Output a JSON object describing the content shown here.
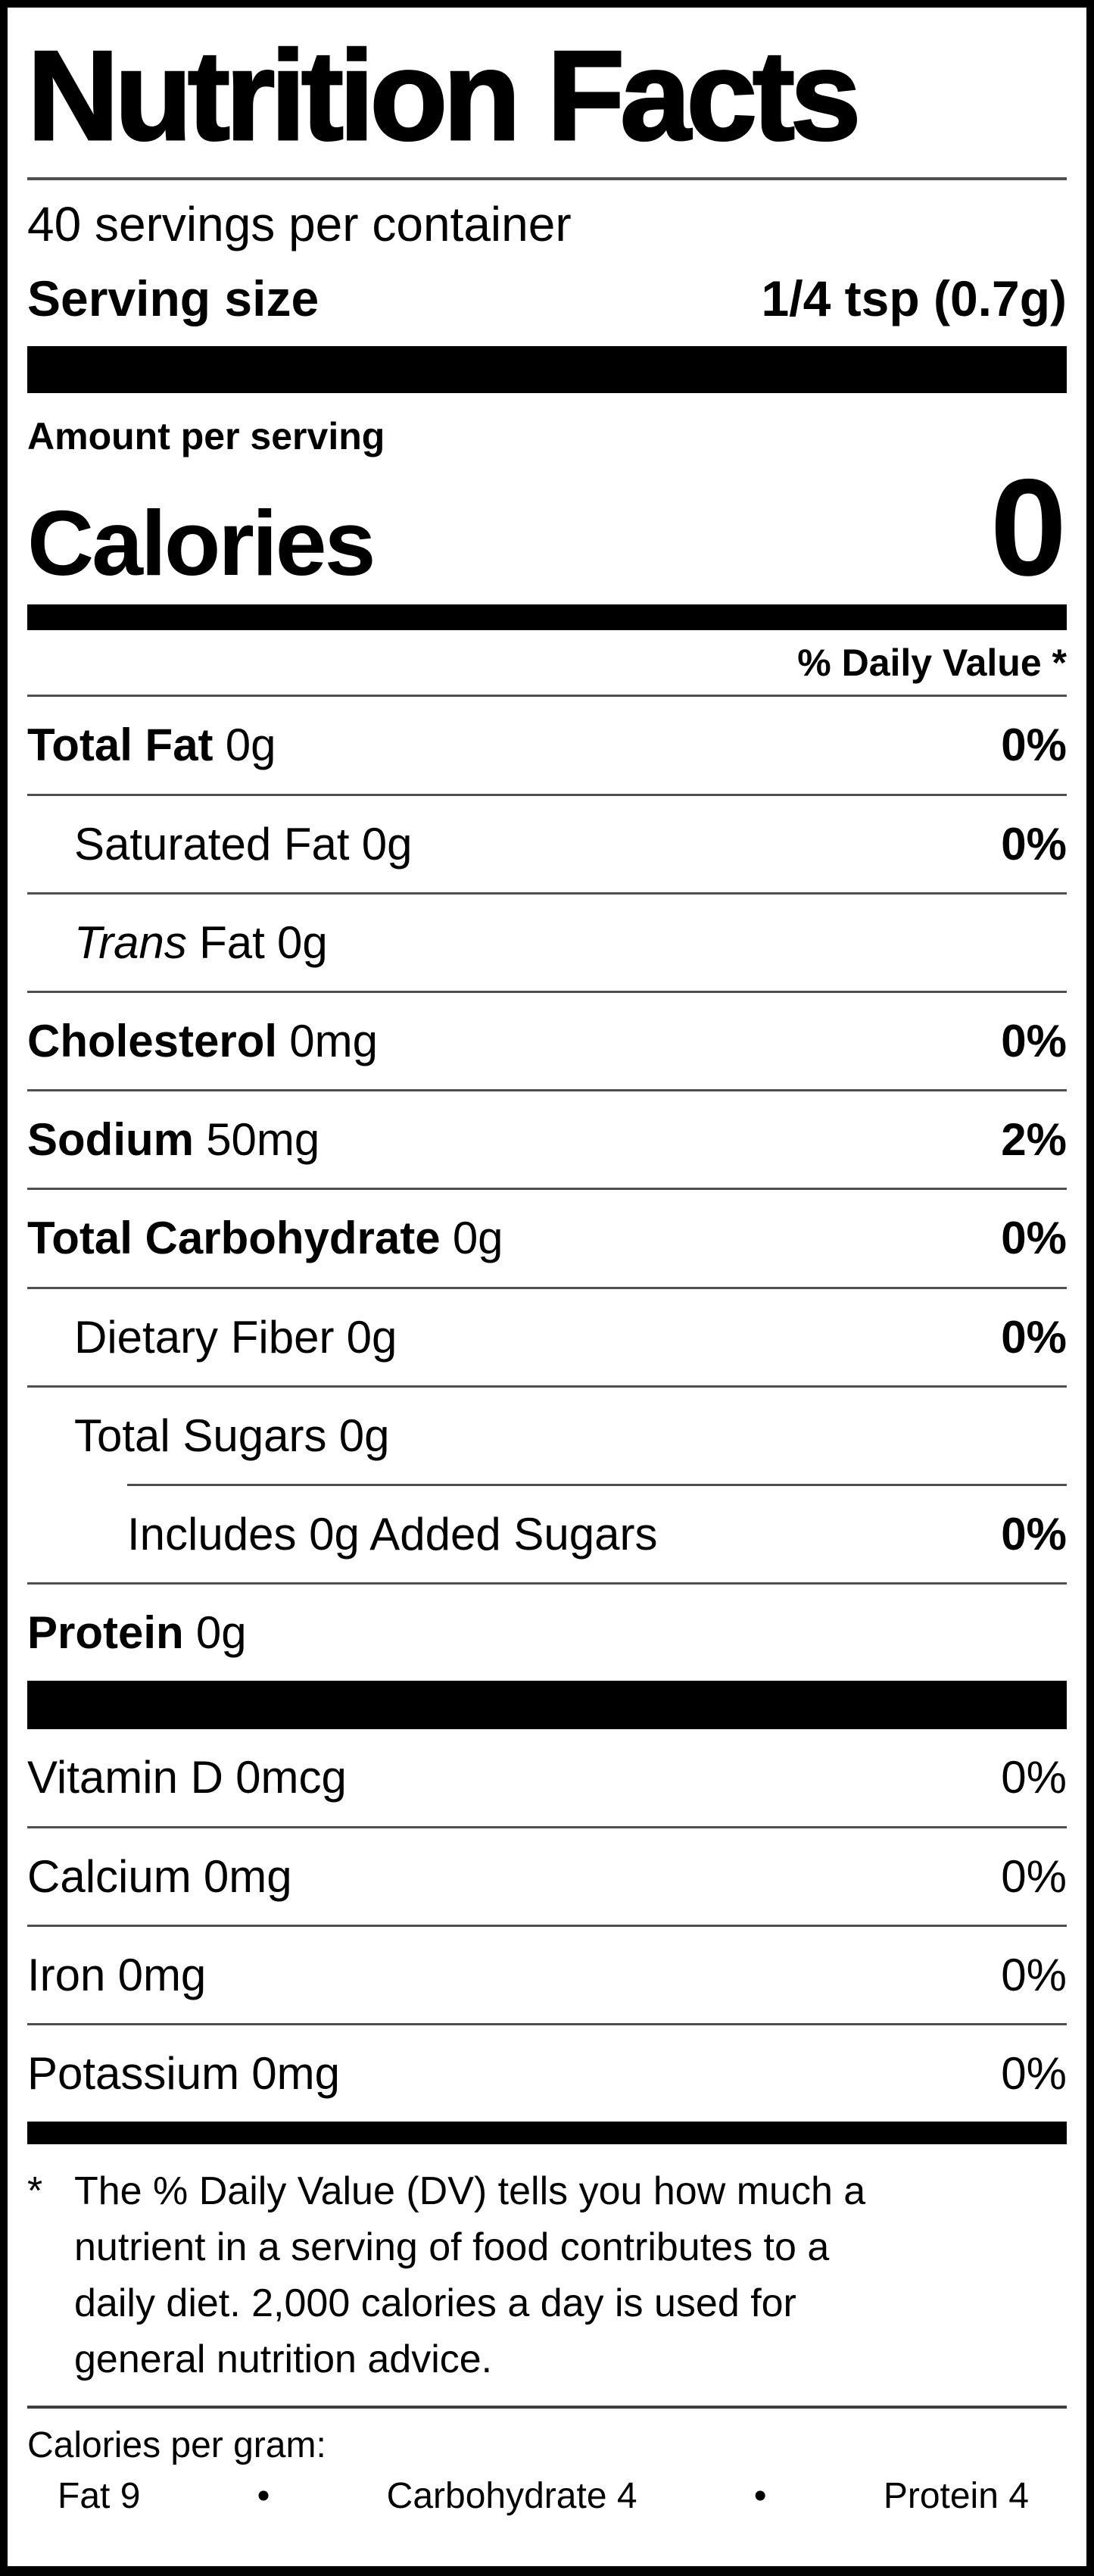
{
  "nutrition_label": {
    "title": "Nutrition Facts",
    "servings_per_container": "40 servings per container",
    "serving_size": {
      "label": "Serving size",
      "value": "1/4 tsp (0.7g)"
    },
    "amount_per_serving": "Amount per serving",
    "calories": {
      "label": "Calories",
      "value": "0"
    },
    "daily_value_header": "% Daily Value *",
    "rows": [
      {
        "name": "Total Fat",
        "amount": "0g",
        "dv": "0%"
      },
      {
        "name": "Saturated Fat",
        "amount": "0g",
        "dv": "0%"
      },
      {
        "italic": "Trans",
        "name": "Fat",
        "amount": "0g",
        "dv": ""
      },
      {
        "name": "Cholesterol",
        "amount": "0mg",
        "dv": "0%"
      },
      {
        "name": "Sodium",
        "amount": "50mg",
        "dv": "2%"
      },
      {
        "name": "Total Carbohydrate",
        "amount": "0g",
        "dv": "0%"
      },
      {
        "name": "Dietary Fiber",
        "amount": "0g",
        "dv": "0%"
      },
      {
        "name": "Total Sugars",
        "amount": "0g",
        "dv": ""
      },
      {
        "name": "Includes 0g Added Sugars",
        "amount": "",
        "dv": "0%"
      },
      {
        "name": "Protein",
        "amount": "0g",
        "dv": ""
      }
    ],
    "micronutrients": [
      {
        "name": "Vitamin D",
        "amount": "0mcg",
        "dv": "0%"
      },
      {
        "name": "Calcium",
        "amount": "0mg",
        "dv": "0%"
      },
      {
        "name": "Iron",
        "amount": "0mg",
        "dv": "0%"
      },
      {
        "name": "Potassium",
        "amount": "0mg",
        "dv": "0%"
      }
    ],
    "footnote": {
      "marker": "*",
      "lines": [
        "The % Daily Value (DV) tells you how much a",
        "nutrient in a serving of food contributes to a",
        "daily diet. 2,000 calories a day is used for",
        "general nutrition advice."
      ]
    },
    "calories_per_gram": {
      "label": "Calories per gram:",
      "bullet": "•",
      "items": [
        "Fat 9",
        "Carbohydrate 4",
        "Protein 4"
      ]
    },
    "colors": {
      "text": "#000000",
      "background": "#ffffff",
      "separator_gray": "#4f4f4f"
    }
  }
}
